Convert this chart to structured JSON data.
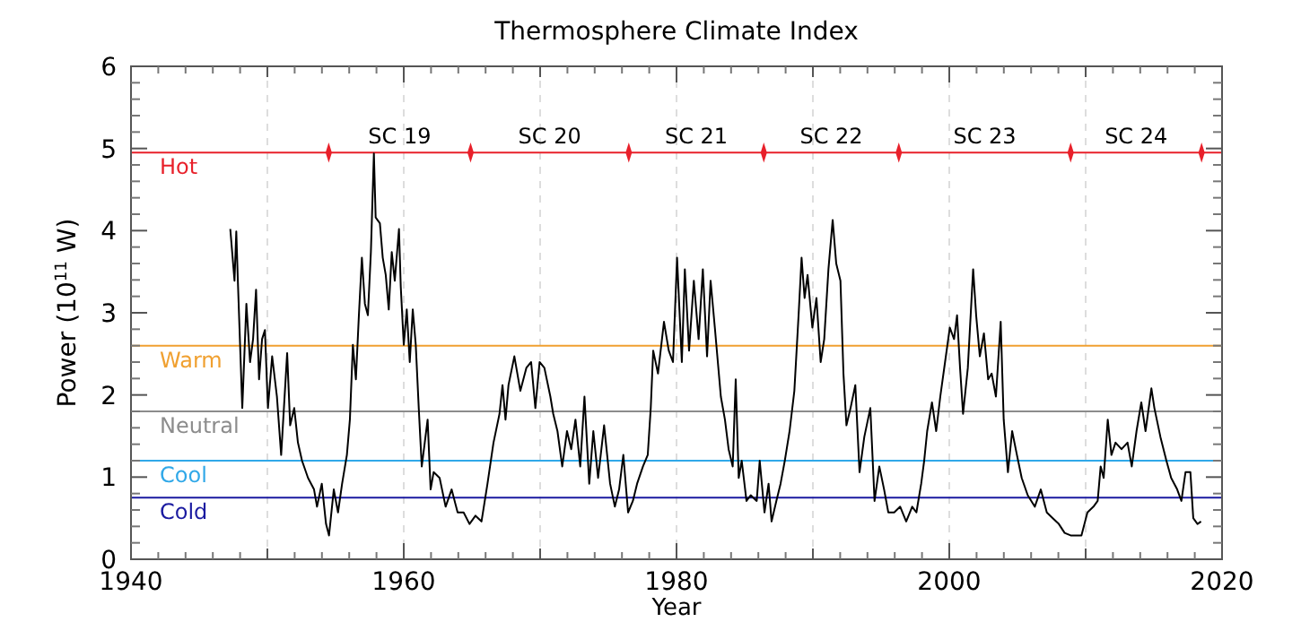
{
  "chart_data": {
    "type": "line",
    "title": "Thermosphere Climate Index",
    "xlabel": "Year",
    "ylabel": "Power (10$^{11}$ W)",
    "xlim": [
      1940,
      2020
    ],
    "xticks": [
      1940,
      {
        "value": 1950,
        "label": null
      },
      1960,
      {
        "value": 1970,
        "label": null
      },
      1980,
      {
        "value": 1990,
        "label": null
      },
      2000,
      {
        "value": 2010,
        "label": null
      },
      2020
    ],
    "ylim": [
      0,
      6
    ],
    "yticks": [
      0,
      1,
      2,
      3,
      4,
      5,
      6
    ],
    "grid": "x",
    "series": [
      {
        "color": "#000000",
        "x": [
          1947.28,
          1947.59,
          1947.72,
          1947.85,
          1948.16,
          1948.46,
          1948.73,
          1948.95,
          1949.17,
          1949.39,
          1949.61,
          1949.82,
          1950.04,
          1950.35,
          1950.7,
          1951.01,
          1951.45,
          1951.67,
          1951.97,
          1952.24,
          1952.54,
          1952.98,
          1953.42,
          1953.64,
          1953.99,
          1954.3,
          1954.52,
          1954.87,
          1955.18,
          1955.48,
          1955.83,
          1956.05,
          1956.27,
          1956.49,
          1956.71,
          1956.93,
          1957.15,
          1957.37,
          1957.59,
          1957.81,
          1957.94,
          1958.25,
          1958.46,
          1958.68,
          1958.9,
          1959.12,
          1959.34,
          1959.65,
          1959.78,
          1960.0,
          1960.22,
          1960.44,
          1960.66,
          1960.88,
          1961.1,
          1961.32,
          1961.54,
          1961.75,
          1961.97,
          1962.19,
          1962.63,
          1963.07,
          1963.51,
          1963.95,
          1964.39,
          1964.82,
          1965.26,
          1965.7,
          1966.14,
          1966.58,
          1967.02,
          1967.24,
          1967.46,
          1967.68,
          1968.11,
          1968.55,
          1968.99,
          1969.34,
          1969.65,
          1969.96,
          1970.31,
          1970.75,
          1970.96,
          1971.27,
          1971.62,
          1971.97,
          1972.28,
          1972.59,
          1972.94,
          1973.25,
          1973.6,
          1973.9,
          1974.25,
          1974.69,
          1975.13,
          1975.48,
          1975.79,
          1976.1,
          1976.45,
          1976.8,
          1977.11,
          1977.54,
          1977.89,
          1978.11,
          1978.29,
          1978.64,
          1979.08,
          1979.43,
          1979.74,
          1980.04,
          1980.39,
          1980.61,
          1980.92,
          1981.27,
          1981.62,
          1981.93,
          1982.24,
          1982.5,
          1982.81,
          1983.03,
          1983.25,
          1983.55,
          1983.82,
          1984.12,
          1984.34,
          1984.56,
          1984.78,
          1985.13,
          1985.44,
          1985.88,
          1986.1,
          1986.45,
          1986.75,
          1986.97,
          1987.32,
          1987.63,
          1987.94,
          1988.29,
          1988.64,
          1988.95,
          1989.17,
          1989.39,
          1989.61,
          1989.96,
          1990.26,
          1990.57,
          1990.83,
          1991.14,
          1991.45,
          1991.71,
          1992.02,
          1992.24,
          1992.46,
          1992.76,
          1993.11,
          1993.42,
          1993.77,
          1994.21,
          1994.52,
          1994.87,
          1995.22,
          1995.53,
          1995.96,
          1996.4,
          1996.84,
          1997.28,
          1997.59,
          1997.94,
          1998.16,
          1998.38,
          1998.73,
          1999.04,
          1999.34,
          1999.69,
          2000.04,
          2000.35,
          2000.57,
          2000.79,
          2001.01,
          2001.36,
          2001.75,
          2001.97,
          2002.24,
          2002.54,
          2002.85,
          2003.11,
          2003.42,
          2003.77,
          2003.99,
          2004.3,
          2004.61,
          2004.96,
          2005.31,
          2005.75,
          2006.27,
          2006.71,
          2007.15,
          2007.59,
          2008.03,
          2008.46,
          2008.9,
          2009.34,
          2009.69,
          2010.13,
          2010.57,
          2010.88,
          2011.1,
          2011.32,
          2011.62,
          2011.89,
          2012.19,
          2012.63,
          2013.07,
          2013.38,
          2013.73,
          2014.08,
          2014.39,
          2014.82,
          2015.04,
          2015.48,
          2015.92,
          2016.27,
          2016.71,
          2017.02,
          2017.32,
          2017.68,
          2017.89,
          2018.2,
          2018.46
        ],
        "values": [
          4.02,
          3.39,
          3.99,
          3.32,
          1.84,
          3.11,
          2.4,
          2.68,
          3.28,
          2.19,
          2.68,
          2.79,
          1.84,
          2.47,
          1.98,
          1.27,
          2.51,
          1.63,
          1.84,
          1.42,
          1.2,
          0.99,
          0.85,
          0.64,
          0.92,
          0.43,
          0.29,
          0.85,
          0.57,
          0.92,
          1.27,
          1.7,
          2.61,
          2.19,
          2.97,
          3.67,
          3.11,
          2.97,
          3.74,
          4.94,
          4.16,
          4.09,
          3.67,
          3.46,
          3.04,
          3.74,
          3.39,
          4.02,
          3.32,
          2.61,
          3.04,
          2.4,
          3.04,
          2.61,
          1.84,
          1.13,
          1.42,
          1.7,
          0.85,
          1.06,
          0.99,
          0.64,
          0.85,
          0.57,
          0.57,
          0.43,
          0.53,
          0.46,
          0.92,
          1.42,
          1.77,
          2.12,
          1.7,
          2.12,
          2.47,
          2.05,
          2.33,
          2.4,
          1.84,
          2.4,
          2.33,
          1.98,
          1.77,
          1.56,
          1.13,
          1.56,
          1.34,
          1.7,
          1.13,
          1.98,
          0.92,
          1.56,
          0.99,
          1.63,
          0.92,
          0.64,
          0.85,
          1.27,
          0.57,
          0.71,
          0.92,
          1.13,
          1.27,
          1.84,
          2.54,
          2.26,
          2.89,
          2.54,
          2.4,
          3.67,
          2.4,
          3.53,
          2.54,
          3.39,
          2.68,
          3.53,
          2.47,
          3.39,
          2.82,
          2.4,
          1.98,
          1.7,
          1.34,
          1.13,
          2.19,
          0.99,
          1.2,
          0.71,
          0.78,
          0.71,
          1.2,
          0.57,
          0.92,
          0.46,
          0.71,
          0.92,
          1.2,
          1.56,
          2.05,
          2.97,
          3.67,
          3.18,
          3.46,
          2.82,
          3.18,
          2.4,
          2.68,
          3.53,
          4.13,
          3.6,
          3.39,
          2.26,
          1.63,
          1.84,
          2.12,
          1.06,
          1.49,
          1.84,
          0.71,
          1.13,
          0.85,
          0.57,
          0.57,
          0.64,
          0.46,
          0.64,
          0.57,
          0.92,
          1.2,
          1.56,
          1.91,
          1.56,
          1.98,
          2.4,
          2.82,
          2.68,
          2.97,
          2.33,
          1.77,
          2.33,
          3.53,
          2.97,
          2.47,
          2.75,
          2.19,
          2.26,
          1.98,
          2.89,
          1.7,
          1.06,
          1.56,
          1.27,
          0.99,
          0.78,
          0.64,
          0.85,
          0.57,
          0.5,
          0.43,
          0.32,
          0.29,
          0.29,
          0.29,
          0.57,
          0.64,
          0.71,
          1.13,
          0.99,
          1.7,
          1.27,
          1.42,
          1.34,
          1.42,
          1.13,
          1.56,
          1.91,
          1.56,
          2.08,
          1.84,
          1.49,
          1.2,
          0.99,
          0.85,
          0.71,
          1.06,
          1.06,
          0.5,
          0.43,
          0.46
        ]
      },
      {
        "type": "scatter",
        "color": "#e8202a",
        "marker": "diamond",
        "x": [
          1954.5,
          1964.9,
          1976.5,
          1986.4,
          1996.3,
          2008.9,
          2018.5
        ],
        "values": [
          4.95,
          4.95,
          4.95,
          4.95,
          4.95,
          4.95,
          4.95
        ]
      }
    ],
    "ref_lines": [
      {
        "axis": "y",
        "value": 4.95,
        "label": "Hot",
        "color": "#e8202a"
      },
      {
        "axis": "y",
        "value": 2.6,
        "label": "Warm",
        "color": "#f0a030"
      },
      {
        "axis": "y",
        "value": 1.8,
        "label": "Neutral",
        "color": "#8c8c8c"
      },
      {
        "axis": "y",
        "value": 1.2,
        "label": "Cool",
        "color": "#30a8e8"
      },
      {
        "axis": "y",
        "value": 0.75,
        "label": "Cold",
        "color": "#1a1aa0"
      }
    ],
    "annotations": [
      "SC 19",
      "SC 20",
      "SC 21",
      "SC 22",
      "SC 23",
      "SC 24"
    ]
  }
}
